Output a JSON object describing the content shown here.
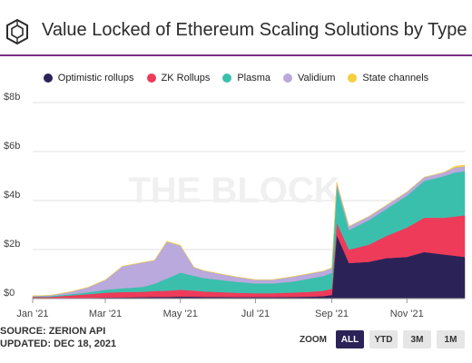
{
  "header": {
    "title": "Value Locked of Ethereum Scaling Solutions by Type",
    "logo": "the-block-hexagon-logo"
  },
  "watermark": "THE BLOCK",
  "footer": {
    "source": "SOURCE: ZERION API",
    "updated": "UPDATED: DEC 18, 2021"
  },
  "zoom": {
    "label": "ZOOM",
    "buttons": [
      "ALL",
      "YTD",
      "3M",
      "1M"
    ],
    "active": "ALL"
  },
  "colors": {
    "accent_rule": "#7a2f86",
    "Optimistic rollups": "#2b2358",
    "ZK Rollups": "#ee3b5a",
    "Plasma": "#3bbfad",
    "Validium": "#b9a9dc",
    "State channels": "#f4d03f"
  },
  "chart_data": {
    "type": "area",
    "stacked": true,
    "title": "Value Locked of Ethereum Scaling Solutions by Type",
    "xlabel": "",
    "ylabel": "",
    "ylim": [
      0,
      8
    ],
    "y_unit": "billion USD",
    "yticks": [
      "$0",
      "$2b",
      "$4b",
      "$6b",
      "$8b"
    ],
    "xticks": [
      "Jan '21",
      "Mar '21",
      "May '21",
      "Jul '21",
      "Sep '21",
      "Nov '21"
    ],
    "x": [
      "2021-01-01",
      "2021-01-15",
      "2021-02-01",
      "2021-02-15",
      "2021-03-01",
      "2021-03-15",
      "2021-04-01",
      "2021-04-10",
      "2021-04-20",
      "2021-05-01",
      "2021-05-12",
      "2021-05-20",
      "2021-06-01",
      "2021-06-15",
      "2021-07-01",
      "2021-07-15",
      "2021-08-01",
      "2021-08-15",
      "2021-08-25",
      "2021-09-01",
      "2021-09-05",
      "2021-09-15",
      "2021-10-01",
      "2021-10-15",
      "2021-11-01",
      "2021-11-15",
      "2021-12-01",
      "2021-12-10",
      "2021-12-18"
    ],
    "legend_position": "top",
    "series": [
      {
        "name": "Optimistic rollups",
        "values": [
          0.02,
          0.02,
          0.03,
          0.03,
          0.04,
          0.05,
          0.06,
          0.07,
          0.07,
          0.08,
          0.08,
          0.07,
          0.07,
          0.06,
          0.06,
          0.06,
          0.07,
          0.08,
          0.1,
          0.15,
          2.6,
          1.45,
          1.5,
          1.65,
          1.7,
          1.9,
          1.8,
          1.75,
          1.7
        ]
      },
      {
        "name": "ZK Rollups",
        "values": [
          0.05,
          0.05,
          0.1,
          0.15,
          0.2,
          0.22,
          0.22,
          0.24,
          0.25,
          0.28,
          0.25,
          0.22,
          0.2,
          0.18,
          0.16,
          0.16,
          0.18,
          0.2,
          0.22,
          0.25,
          0.5,
          0.55,
          0.7,
          0.9,
          1.2,
          1.4,
          1.5,
          1.6,
          1.7
        ]
      },
      {
        "name": "Plasma",
        "values": [
          0.02,
          0.03,
          0.05,
          0.08,
          0.12,
          0.15,
          0.2,
          0.3,
          0.5,
          0.7,
          0.6,
          0.55,
          0.5,
          0.45,
          0.4,
          0.4,
          0.45,
          0.55,
          0.6,
          0.65,
          1.5,
          0.8,
          1.0,
          1.1,
          1.3,
          1.5,
          1.7,
          1.8,
          1.8
        ]
      },
      {
        "name": "Validium",
        "values": [
          0.02,
          0.03,
          0.1,
          0.2,
          0.4,
          0.9,
          1.0,
          0.95,
          1.5,
          1.1,
          0.35,
          0.3,
          0.25,
          0.2,
          0.15,
          0.15,
          0.2,
          0.2,
          0.2,
          0.2,
          0.15,
          0.15,
          0.15,
          0.15,
          0.15,
          0.15,
          0.15,
          0.2,
          0.2
        ]
      },
      {
        "name": "State channels",
        "values": [
          0,
          0,
          0,
          0,
          0,
          0,
          0,
          0,
          0.02,
          0.02,
          0,
          0,
          0,
          0,
          0,
          0,
          0,
          0,
          0,
          0,
          0,
          0,
          0,
          0,
          0,
          0,
          0,
          0.05,
          0.05
        ]
      }
    ]
  }
}
